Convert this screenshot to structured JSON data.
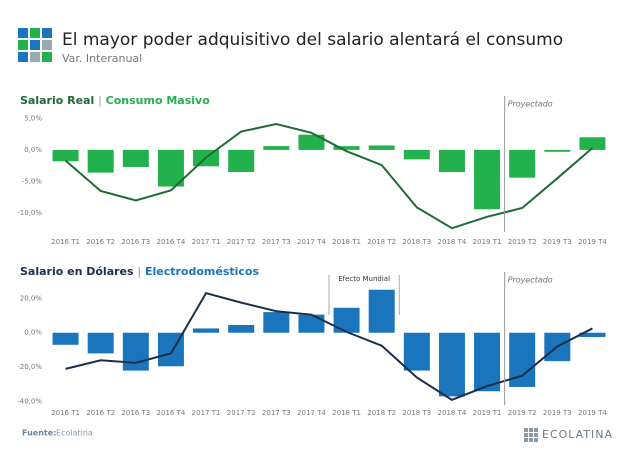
{
  "header": {
    "title": "El mayor poder adquisitivo del salario alentará el consumo",
    "subtitle": "Var. Interanual"
  },
  "chart_data": [
    {
      "type": "bar",
      "title_separator": "|",
      "categories": [
        "2016 T1",
        "2016 T2",
        "2016 T3",
        "2016 T4",
        "2017 T1",
        "2017 T2",
        "2017 T3",
        "2017 T4",
        "2018 T1",
        "2018 T2",
        "2018 T3",
        "2018 T4",
        "2019 T1",
        "2019 T2",
        "2019 T3",
        "2019 T4"
      ],
      "series": [
        {
          "name": "Salario Real",
          "type": "line",
          "color": "#1e6b34",
          "values": [
            -1.7,
            -6.5,
            -8.0,
            -6.4,
            -1.2,
            2.9,
            4.1,
            2.7,
            -0.2,
            -2.4,
            -9.1,
            -12.4,
            -10.6,
            -9.2,
            -4.5,
            0.3
          ]
        },
        {
          "name": "Consumo Masivo",
          "type": "bar",
          "color": "#22b14c",
          "values": [
            -1.8,
            -3.6,
            -2.7,
            -5.8,
            -2.6,
            -3.5,
            0.6,
            2.4,
            0.6,
            0.7,
            -1.5,
            -3.5,
            -9.4,
            -4.4,
            -0.3,
            2.0
          ]
        }
      ],
      "ylim": [
        -13,
        6
      ],
      "yticks": [
        {
          "value": 5,
          "label": "5,0%"
        },
        {
          "value": 0,
          "label": "0,0%"
        },
        {
          "value": -5,
          "label": "-5,0%"
        },
        {
          "value": -10,
          "label": "-10,0%"
        }
      ],
      "grid": false,
      "annotations": [
        {
          "text": "Proyectado",
          "from": "2019 T2"
        }
      ]
    },
    {
      "type": "bar",
      "title_separator": "|",
      "categories": [
        "2016 T1",
        "2016 T2",
        "2016 T3",
        "2016 T4",
        "2017 T1",
        "2017 T2",
        "2017 T3",
        "2017 T4",
        "2018 T1",
        "2018 T2",
        "2018 T3",
        "2018 T4",
        "2019 T1",
        "2019 T2",
        "2019 T3",
        "2019 T4"
      ],
      "series": [
        {
          "name": "Salario en Dólares",
          "type": "line",
          "color": "#1c2e4a",
          "values": [
            -21,
            -16,
            -17.5,
            -12,
            23,
            17.5,
            12.5,
            10.5,
            0.5,
            -7.5,
            -26,
            -39,
            -31,
            -25,
            -8,
            2.5
          ]
        },
        {
          "name": "Electrodomésticos",
          "type": "bar",
          "color": "#1a75bc",
          "values": [
            -7,
            -12,
            -22,
            -19.5,
            2.5,
            4.5,
            12,
            10.5,
            14.5,
            25,
            -22,
            -37,
            -34,
            -31.5,
            -16.5,
            -2.5
          ]
        }
      ],
      "ylim": [
        -42,
        26
      ],
      "yticks": [
        {
          "value": 20,
          "label": "20,0%"
        },
        {
          "value": 0,
          "label": "0,0%"
        },
        {
          "value": -20,
          "label": "-20,0%"
        },
        {
          "value": -40,
          "label": "-40,0%"
        }
      ],
      "grid": false,
      "annotations": [
        {
          "text": "Efecto Mundial",
          "from": "2018 T1",
          "to": "2018 T2"
        },
        {
          "text": "Proyectado",
          "from": "2019 T2"
        }
      ]
    }
  ],
  "footer": {
    "source_label": "Fuente:",
    "source": "Ecolatina",
    "brand": "ECOLATINA"
  }
}
